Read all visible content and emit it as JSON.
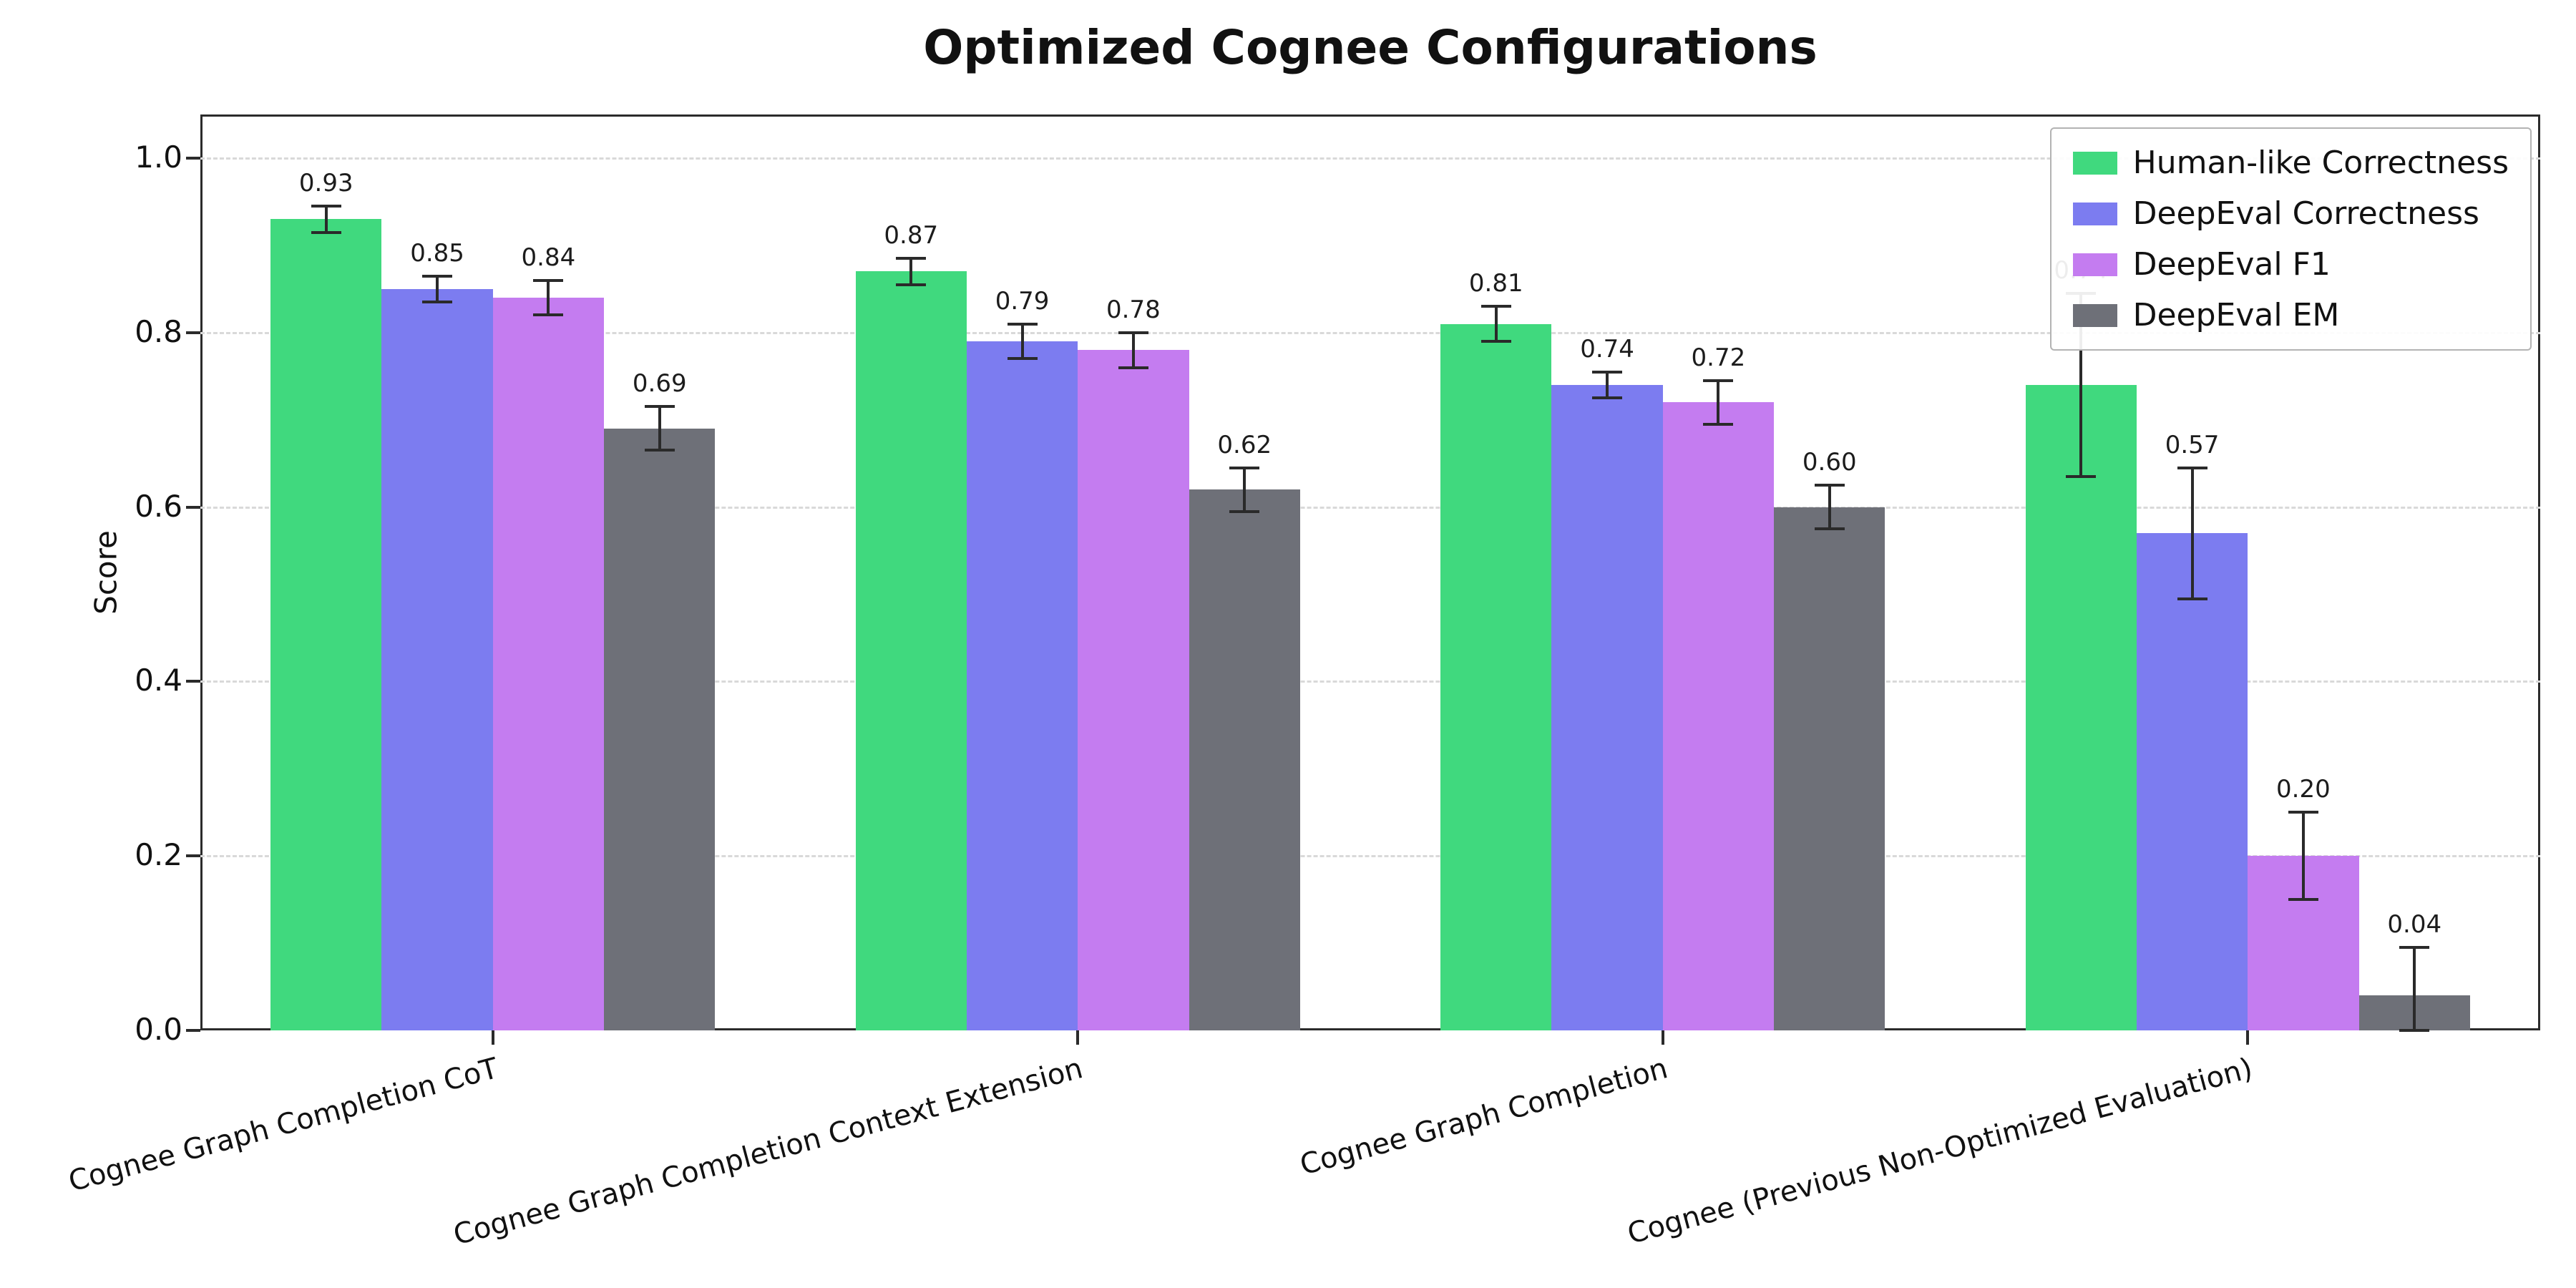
{
  "chart_data": {
    "type": "bar",
    "title": "Optimized Cognee Configurations",
    "xlabel": "",
    "ylabel": "Score",
    "ylim": [
      0,
      1.05
    ],
    "yticks": [
      0.0,
      0.2,
      0.4,
      0.6,
      0.8,
      1.0
    ],
    "grid": "horizontal-dashed",
    "legend_position": "upper right",
    "categories": [
      "Cognee Graph Completion CoT",
      "Cognee Graph Completion Context Extension",
      "Cognee Graph Completion",
      "Cognee (Previous Non-Optimized Evaluation)"
    ],
    "series": [
      {
        "name": "Human-like Correctness",
        "color": "#40d97e",
        "values": [
          0.93,
          0.87,
          0.81,
          0.74
        ],
        "errors": [
          0.015,
          0.015,
          0.02,
          0.105
        ]
      },
      {
        "name": "DeepEval Correctness",
        "color": "#7c7cf0",
        "values": [
          0.85,
          0.79,
          0.74,
          0.57
        ],
        "errors": [
          0.015,
          0.02,
          0.015,
          0.075
        ]
      },
      {
        "name": "DeepEval F1",
        "color": "#c47cf0",
        "values": [
          0.84,
          0.78,
          0.72,
          0.2
        ],
        "errors": [
          0.02,
          0.02,
          0.025,
          0.05
        ]
      },
      {
        "name": "DeepEval EM",
        "color": "#6e7078",
        "values": [
          0.69,
          0.62,
          0.6,
          0.04
        ],
        "errors": [
          0.025,
          0.025,
          0.025,
          0.055
        ]
      }
    ]
  }
}
